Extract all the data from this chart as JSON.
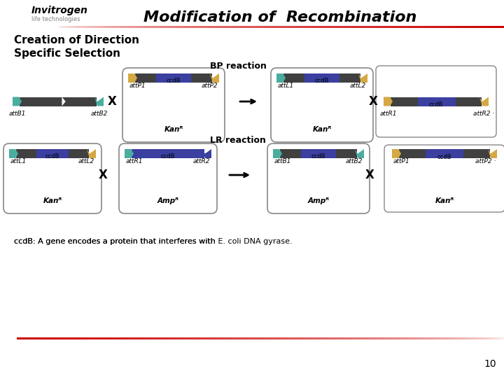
{
  "title": "Modification of  Recombination",
  "subtitle1": "Creation of Direction",
  "subtitle2": "Specific Selection",
  "bp_label": "BP reaction",
  "lr_label": "LR reaction",
  "ccdb_label": "ccdB",
  "footnote": "ccdB: A gene encodes a protein that interferes with E. coli DNA gyrase.",
  "page_num": "10",
  "colors": {
    "teal_att": "#4AADA0",
    "gold_att": "#D4A843",
    "dark_gray": "#404040",
    "navy_blue": "#3A3FA0",
    "background": "#FFFFFF",
    "header_bg": "#FFFFFF",
    "red_line": "#CC0000",
    "box_border": "#888888",
    "arrow": "#222222",
    "text_dark": "#222222"
  }
}
